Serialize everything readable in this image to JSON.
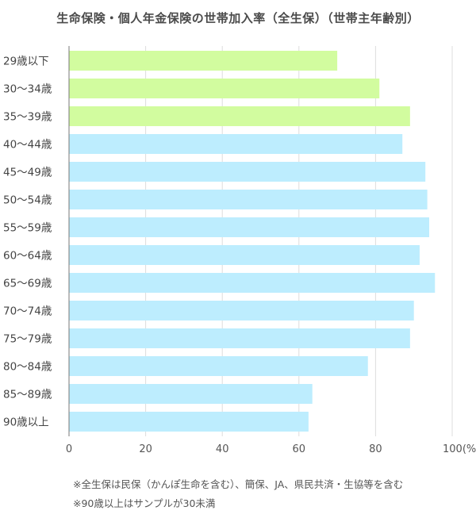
{
  "chart_data": {
    "type": "bar",
    "orientation": "horizontal",
    "title": "生命保険・個人年金保険の世帯加入率（全生保）（世帯主年齢別）",
    "categories": [
      "29歳以下",
      "30～34歳",
      "35～39歳",
      "40～44歳",
      "45～49歳",
      "50～54歳",
      "55～59歳",
      "60～64歳",
      "65～69歳",
      "70～74歳",
      "75～79歳",
      "80～84歳",
      "85～89歳",
      "90歳以上"
    ],
    "values": [
      70,
      81,
      89,
      87,
      93,
      93.5,
      94,
      91.5,
      95.5,
      90,
      89,
      78,
      63.5,
      62.5
    ],
    "xlim": [
      0,
      100
    ],
    "xticks": [
      "0",
      "20",
      "40",
      "60",
      "80",
      "100"
    ],
    "xunit": "(%)",
    "grid": true,
    "colors": {
      "green": "#d2fc9f",
      "blue": "#bdedfe",
      "green_count": 3
    }
  },
  "notes": [
    "※全生保は民保（かんぽ生命を含む）、簡保、JA、県民共済・生協等を含む",
    "※90歳以上はサンプルが30未満"
  ]
}
